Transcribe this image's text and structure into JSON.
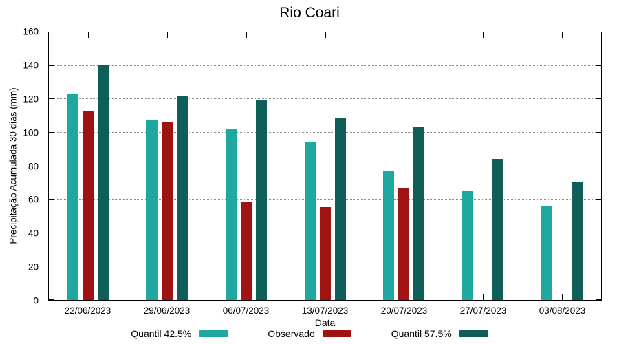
{
  "chart_data": {
    "type": "bar",
    "title": "Rio Coari",
    "xlabel": "Data",
    "ylabel": "Precipitação Acumulada 30 dias (mm)",
    "ylim": [
      0,
      160
    ],
    "yticks": [
      0,
      20,
      40,
      60,
      80,
      100,
      120,
      140,
      160
    ],
    "grid": "horizontal-dotted",
    "legend_position": "bottom-center",
    "categories": [
      "22/06/2023",
      "29/06/2023",
      "06/07/2023",
      "13/07/2023",
      "20/07/2023",
      "27/07/2023",
      "03/08/2023"
    ],
    "series": [
      {
        "name": "Quantil 42.5%",
        "color": "#1FA8A0",
        "values": [
          123.5,
          107.5,
          102.5,
          94,
          77.5,
          65.5,
          56.5
        ]
      },
      {
        "name": "Observado",
        "color": "#9F1313",
        "values": [
          113,
          106,
          59,
          55.5,
          67,
          null,
          null
        ]
      },
      {
        "name": "Quantil 57.5%",
        "color": "#0F5E5A",
        "values": [
          140.5,
          122,
          119.5,
          108.5,
          103.5,
          84.5,
          70.5
        ]
      }
    ]
  }
}
